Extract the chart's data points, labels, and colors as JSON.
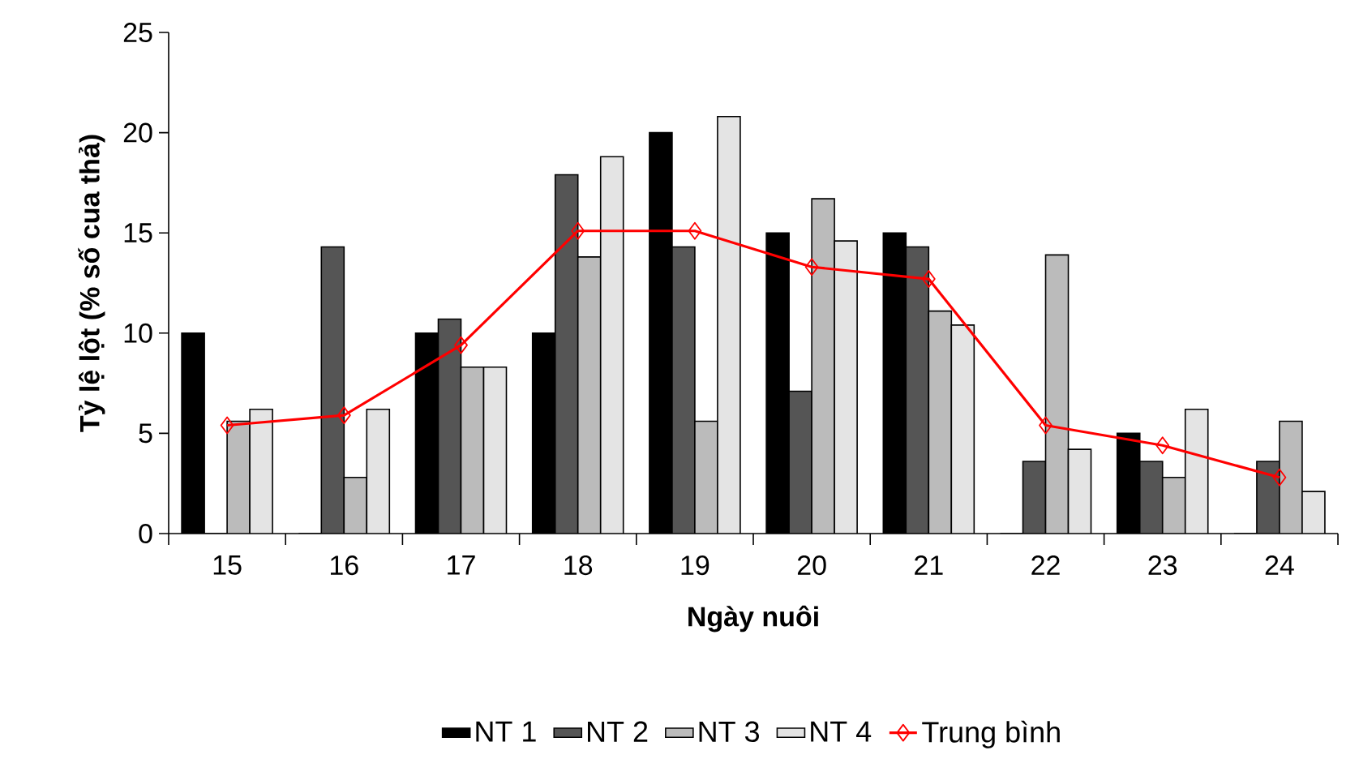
{
  "chart_data": {
    "type": "bar",
    "xlabel": "Ngày nuôi",
    "ylabel": "Tỷ lệ lột (% số cua thả)",
    "categories": [
      "15",
      "16",
      "17",
      "18",
      "19",
      "20",
      "21",
      "22",
      "23",
      "24"
    ],
    "ylim": [
      0,
      25
    ],
    "yticks": [
      0,
      5,
      10,
      15,
      20,
      25
    ],
    "legend": "bottom",
    "grid": false,
    "series": [
      {
        "name": "NT 1",
        "color": "#000000",
        "values": [
          10,
          0,
          10,
          10,
          20,
          15,
          15,
          0,
          5,
          0
        ]
      },
      {
        "name": "NT 2",
        "color": "#555555",
        "values": [
          0,
          14.3,
          10.7,
          17.9,
          14.3,
          7.1,
          14.3,
          3.6,
          3.6,
          3.6
        ]
      },
      {
        "name": "NT 3",
        "color": "#bbbbbb",
        "values": [
          5.6,
          2.8,
          8.3,
          13.8,
          5.6,
          16.7,
          11.1,
          13.9,
          2.8,
          5.6
        ]
      },
      {
        "name": "NT 4",
        "color": "#e4e4e4",
        "values": [
          6.2,
          6.2,
          8.3,
          18.8,
          20.8,
          14.6,
          10.4,
          4.2,
          6.2,
          2.1
        ]
      },
      {
        "name": "Trung bình",
        "type": "line",
        "color": "#ff0000",
        "marker": "diamond",
        "values": [
          5.4,
          5.9,
          9.4,
          15.1,
          15.1,
          13.3,
          12.7,
          5.4,
          4.4,
          2.8
        ]
      }
    ]
  }
}
